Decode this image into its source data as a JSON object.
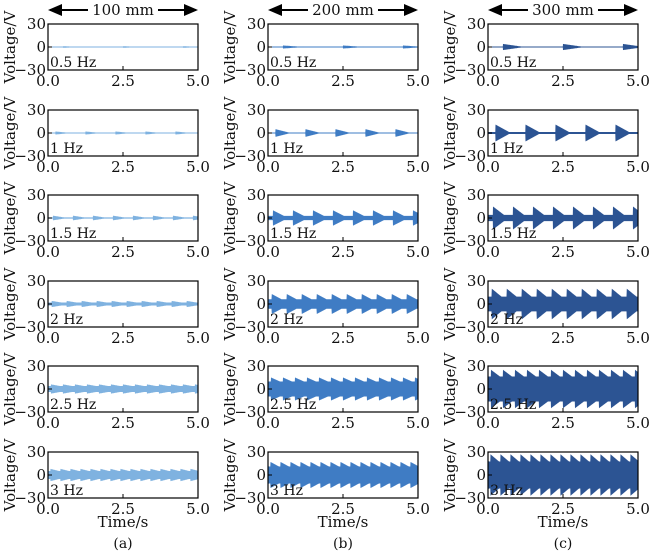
{
  "chart_data": {
    "type": "area",
    "xlabel": "Time/s",
    "ylabel": "Voltage/V",
    "xlim": [
      0,
      5
    ],
    "ylim": [
      -30,
      30
    ],
    "xticks": [
      "0.0",
      "2.5",
      "5.0"
    ],
    "yticks": [
      "30",
      "0",
      "−30"
    ],
    "xtick_values": [
      0,
      2.5,
      5
    ],
    "ytick_values": [
      30,
      0,
      -30
    ],
    "columns": [
      {
        "label": "(a)",
        "header": "100 mm",
        "color": "#7fb2e0",
        "panels": [
          {
            "freq_label": "0.5 Hz",
            "frequency": 0.5,
            "amplitude": 1
          },
          {
            "freq_label": "1 Hz",
            "frequency": 1,
            "amplitude": 2
          },
          {
            "freq_label": "1.5 Hz",
            "frequency": 1.5,
            "amplitude": 3
          },
          {
            "freq_label": "2 Hz",
            "frequency": 2,
            "amplitude": 4
          },
          {
            "freq_label": "2.5 Hz",
            "frequency": 2.5,
            "amplitude": 6
          },
          {
            "freq_label": "3 Hz",
            "frequency": 3,
            "amplitude": 8
          }
        ]
      },
      {
        "label": "(b)",
        "header": "200 mm",
        "color": "#3f7cc4",
        "panels": [
          {
            "freq_label": "0.5 Hz",
            "frequency": 0.5,
            "amplitude": 2
          },
          {
            "freq_label": "1 Hz",
            "frequency": 1,
            "amplitude": 5
          },
          {
            "freq_label": "1.5 Hz",
            "frequency": 1.5,
            "amplitude": 10
          },
          {
            "freq_label": "2 Hz",
            "frequency": 2,
            "amplitude": 13
          },
          {
            "freq_label": "2.5 Hz",
            "frequency": 2.5,
            "amplitude": 15
          },
          {
            "freq_label": "3 Hz",
            "frequency": 3,
            "amplitude": 17
          }
        ]
      },
      {
        "label": "(c)",
        "header": "300 mm",
        "color": "#2c5493",
        "panels": [
          {
            "freq_label": "0.5 Hz",
            "frequency": 0.5,
            "amplitude": 4
          },
          {
            "freq_label": "1 Hz",
            "frequency": 1,
            "amplitude": 11
          },
          {
            "freq_label": "1.5 Hz",
            "frequency": 1.5,
            "amplitude": 15
          },
          {
            "freq_label": "2 Hz",
            "frequency": 2,
            "amplitude": 20
          },
          {
            "freq_label": "2.5 Hz",
            "frequency": 2.5,
            "amplitude": 25
          },
          {
            "freq_label": "3 Hz",
            "frequency": 3,
            "amplitude": 27
          }
        ]
      }
    ]
  }
}
